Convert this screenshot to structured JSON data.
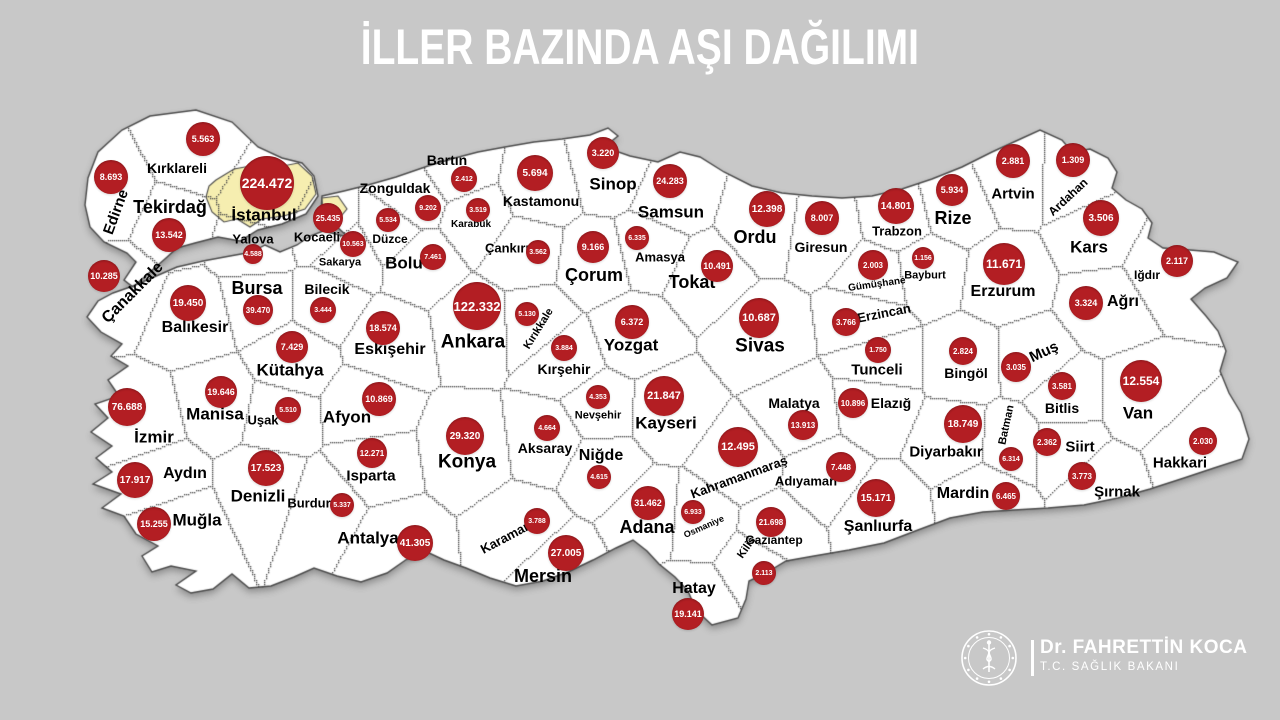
{
  "title": "İLLER BAZINDA AŞI DAĞILIMI",
  "footer": {
    "minister_name": "Dr. FAHRETTİN KOCA",
    "minister_role": "T.C. SAĞLIK BAKANI",
    "logo": "health-ministry-seal-caduceus-icon"
  },
  "colors": {
    "background": "#c8c8c8",
    "land": "#ffffff",
    "border": "#4a4a4a",
    "bubble": "#b31e23",
    "bubble_text": "#ffffff",
    "highlight_istanbul": "#f6eeb0",
    "label_text": "#000000",
    "title_text": "#ffffff",
    "footer_text": "#ffffff"
  },
  "provinces": [
    {
      "name": "Edirne",
      "value": "8.693",
      "circle": [
        111,
        177,
        17
      ],
      "label": [
        116,
        212,
        15,
        -70
      ]
    },
    {
      "name": "Kırklareli",
      "value": "5.563",
      "circle": [
        203,
        139,
        17
      ],
      "label": [
        177,
        168,
        14,
        0
      ]
    },
    {
      "name": "Tekirdağ",
      "value": "13.542",
      "circle": [
        169,
        235,
        17
      ],
      "label": [
        170,
        207,
        18,
        0
      ]
    },
    {
      "name": "İstanbul",
      "value": "224.472",
      "circle": [
        267,
        183,
        27
      ],
      "label": [
        264,
        215,
        17,
        0
      ],
      "highlight": true
    },
    {
      "name": "Kocaeli",
      "value": "25.435",
      "circle": [
        328,
        218,
        15
      ],
      "label": [
        317,
        237,
        13,
        0
      ]
    },
    {
      "name": "Yalova",
      "value": "4.588",
      "circle": [
        253,
        254,
        10
      ],
      "label": [
        253,
        239,
        13,
        0
      ]
    },
    {
      "name": "Sakarya",
      "value": "10.563",
      "circle": [
        353,
        244,
        13
      ],
      "label": [
        340,
        263,
        11,
        0
      ]
    },
    {
      "name": "Düzce",
      "value": "5.534",
      "circle": [
        388,
        220,
        12
      ],
      "label": [
        390,
        239,
        12,
        0
      ]
    },
    {
      "name": "Bolu",
      "value": "7.461",
      "circle": [
        433,
        257,
        13
      ],
      "label": [
        404,
        263,
        17,
        0
      ]
    },
    {
      "name": "Zonguldak",
      "value": "9.202",
      "circle": [
        428,
        208,
        13
      ],
      "label": [
        395,
        188,
        14,
        0
      ]
    },
    {
      "name": "Bartın",
      "value": "2.412",
      "circle": [
        464,
        179,
        13
      ],
      "label": [
        447,
        160,
        14,
        0
      ]
    },
    {
      "name": "Karabük",
      "value": "3.519",
      "circle": [
        478,
        210,
        12
      ],
      "label": [
        471,
        225,
        10,
        0
      ]
    },
    {
      "name": "Kastamonu",
      "value": "5.694",
      "circle": [
        535,
        173,
        18
      ],
      "label": [
        541,
        201,
        14,
        0
      ]
    },
    {
      "name": "Çankırı",
      "value": "3.562",
      "circle": [
        538,
        252,
        12
      ],
      "label": [
        507,
        248,
        13,
        0
      ]
    },
    {
      "name": "Sinop",
      "value": "3.220",
      "circle": [
        603,
        153,
        16
      ],
      "label": [
        613,
        184,
        17,
        0
      ]
    },
    {
      "name": "Çorum",
      "value": "9.166",
      "circle": [
        593,
        247,
        16
      ],
      "label": [
        594,
        275,
        18,
        0
      ]
    },
    {
      "name": "Amasya",
      "value": "6.335",
      "circle": [
        637,
        238,
        12
      ],
      "label": [
        660,
        257,
        13,
        0
      ]
    },
    {
      "name": "Samsun",
      "value": "24.283",
      "circle": [
        670,
        181,
        17
      ],
      "label": [
        671,
        212,
        17,
        0
      ]
    },
    {
      "name": "Ordu",
      "value": "12.398",
      "circle": [
        767,
        209,
        18
      ],
      "label": [
        755,
        237,
        18,
        0
      ]
    },
    {
      "name": "Tokat",
      "value": "10.491",
      "circle": [
        717,
        266,
        16
      ],
      "label": [
        692,
        282,
        18,
        0
      ]
    },
    {
      "name": "Giresun",
      "value": "8.007",
      "circle": [
        822,
        218,
        17
      ],
      "label": [
        821,
        247,
        14,
        0
      ]
    },
    {
      "name": "Gümüşhane",
      "value": "2.003",
      "circle": [
        873,
        265,
        15
      ],
      "label": [
        877,
        285,
        10,
        -8
      ]
    },
    {
      "name": "Bayburt",
      "value": "1.156",
      "circle": [
        923,
        258,
        11
      ],
      "label": [
        925,
        276,
        11,
        0
      ]
    },
    {
      "name": "Trabzon",
      "value": "14.801",
      "circle": [
        896,
        206,
        18
      ],
      "label": [
        897,
        231,
        13,
        0
      ]
    },
    {
      "name": "Rize",
      "value": "5.934",
      "circle": [
        952,
        190,
        16
      ],
      "label": [
        953,
        218,
        18,
        0
      ]
    },
    {
      "name": "Artvin",
      "value": "2.881",
      "circle": [
        1013,
        161,
        17
      ],
      "label": [
        1013,
        194,
        15,
        0
      ]
    },
    {
      "name": "Ardahan",
      "value": "1.309",
      "circle": [
        1073,
        160,
        17
      ],
      "label": [
        1068,
        197,
        12,
        -43
      ]
    },
    {
      "name": "Kars",
      "value": "3.506",
      "circle": [
        1101,
        218,
        18
      ],
      "label": [
        1089,
        247,
        17,
        0
      ]
    },
    {
      "name": "Iğdır",
      "value": "2.117",
      "circle": [
        1177,
        261,
        16
      ],
      "label": [
        1147,
        275,
        12,
        0
      ]
    },
    {
      "name": "Ağrı",
      "value": "3.324",
      "circle": [
        1086,
        303,
        17
      ],
      "label": [
        1123,
        302,
        16,
        0
      ]
    },
    {
      "name": "Erzurum",
      "value": "11.671",
      "circle": [
        1004,
        264,
        21
      ],
      "label": [
        1003,
        292,
        16,
        0
      ]
    },
    {
      "name": "Erzincan",
      "value": "3.766",
      "circle": [
        846,
        322,
        14
      ],
      "label": [
        884,
        313,
        13,
        -11
      ]
    },
    {
      "name": "Tunceli",
      "value": "1.750",
      "circle": [
        878,
        350,
        13
      ],
      "label": [
        877,
        370,
        15,
        0
      ]
    },
    {
      "name": "Bingöl",
      "value": "2.824",
      "circle": [
        963,
        351,
        14
      ],
      "label": [
        966,
        373,
        14,
        0
      ]
    },
    {
      "name": "Muş",
      "value": "3.035",
      "circle": [
        1016,
        367,
        15
      ],
      "label": [
        1044,
        352,
        15,
        -25
      ]
    },
    {
      "name": "Bitlis",
      "value": "3.581",
      "circle": [
        1062,
        386,
        14
      ],
      "label": [
        1062,
        408,
        14,
        0
      ]
    },
    {
      "name": "Van",
      "value": "12.554",
      "circle": [
        1141,
        381,
        21
      ],
      "label": [
        1138,
        413,
        17,
        0
      ]
    },
    {
      "name": "Sivas",
      "value": "10.687",
      "circle": [
        759,
        318,
        20
      ],
      "label": [
        760,
        346,
        19,
        0
      ]
    },
    {
      "name": "Malatya",
      "value": "13.913",
      "circle": [
        803,
        425,
        15
      ],
      "label": [
        794,
        403,
        14,
        0
      ]
    },
    {
      "name": "Elazığ",
      "value": "10.896",
      "circle": [
        853,
        403,
        15
      ],
      "label": [
        891,
        403,
        14,
        0
      ]
    },
    {
      "name": "Diyarbakır",
      "value": "18.749",
      "circle": [
        963,
        424,
        19
      ],
      "label": [
        946,
        452,
        15,
        0
      ]
    },
    {
      "name": "Batman",
      "value": "6.314",
      "circle": [
        1011,
        459,
        12
      ],
      "label": [
        1007,
        425,
        11,
        -78
      ]
    },
    {
      "name": "Siirt",
      "value": "2.362",
      "circle": [
        1047,
        442,
        14
      ],
      "label": [
        1080,
        447,
        15,
        0
      ]
    },
    {
      "name": "Şırnak",
      "value": "3.773",
      "circle": [
        1082,
        476,
        14
      ],
      "label": [
        1117,
        492,
        15,
        0
      ]
    },
    {
      "name": "Hakkari",
      "value": "2.030",
      "circle": [
        1203,
        441,
        14
      ],
      "label": [
        1180,
        463,
        15,
        0
      ]
    },
    {
      "name": "Mardin",
      "value": "6.465",
      "circle": [
        1006,
        496,
        14
      ],
      "label": [
        963,
        494,
        16,
        0
      ]
    },
    {
      "name": "Şanlıurfa",
      "value": "15.171",
      "circle": [
        876,
        498,
        19
      ],
      "label": [
        878,
        527,
        16,
        0
      ]
    },
    {
      "name": "Gaziantep",
      "value": "21.698",
      "circle": [
        771,
        522,
        15
      ],
      "label": [
        774,
        540,
        12,
        0
      ]
    },
    {
      "name": "Kilis",
      "value": "2.113",
      "circle": [
        764,
        573,
        12
      ],
      "label": [
        747,
        548,
        11,
        -55
      ]
    },
    {
      "name": "Adıyaman",
      "value": "7.448",
      "circle": [
        841,
        467,
        15
      ],
      "label": [
        806,
        481,
        13,
        0
      ]
    },
    {
      "name": "Kahramanmaraş",
      "value": "12.495",
      "circle": [
        738,
        447,
        20
      ],
      "label": [
        739,
        477,
        13,
        -20
      ]
    },
    {
      "name": "Osmaniye",
      "value": "6.933",
      "circle": [
        693,
        512,
        12
      ],
      "label": [
        704,
        527,
        9,
        -24
      ]
    },
    {
      "name": "Hatay",
      "value": "19.141",
      "circle": [
        688,
        614,
        16
      ],
      "label": [
        694,
        589,
        16,
        0
      ]
    },
    {
      "name": "Adana",
      "value": "31.462",
      "circle": [
        648,
        503,
        17
      ],
      "label": [
        647,
        527,
        18,
        0
      ]
    },
    {
      "name": "Mersin",
      "value": "27.005",
      "circle": [
        566,
        553,
        18
      ],
      "label": [
        543,
        576,
        18,
        0
      ]
    },
    {
      "name": "Karaman",
      "value": "3.788",
      "circle": [
        537,
        521,
        13
      ],
      "label": [
        506,
        537,
        13,
        -28
      ]
    },
    {
      "name": "Niğde",
      "value": "4.615",
      "circle": [
        599,
        477,
        12
      ],
      "label": [
        601,
        456,
        16,
        0
      ]
    },
    {
      "name": "Nevşehir",
      "value": "4.353",
      "circle": [
        598,
        397,
        12
      ],
      "label": [
        598,
        416,
        11,
        0
      ]
    },
    {
      "name": "Aksaray",
      "value": "4.664",
      "circle": [
        547,
        428,
        13
      ],
      "label": [
        545,
        448,
        14,
        0
      ]
    },
    {
      "name": "Kayseri",
      "value": "21.847",
      "circle": [
        664,
        396,
        20
      ],
      "label": [
        666,
        423,
        17,
        0
      ]
    },
    {
      "name": "Kırşehir",
      "value": "3.884",
      "circle": [
        564,
        348,
        13
      ],
      "label": [
        564,
        369,
        14,
        0
      ]
    },
    {
      "name": "Kırıkkale",
      "value": "5.130",
      "circle": [
        527,
        314,
        12
      ],
      "label": [
        539,
        329,
        11,
        -58
      ]
    },
    {
      "name": "Yozgat",
      "value": "6.372",
      "circle": [
        632,
        322,
        17
      ],
      "label": [
        631,
        345,
        17,
        0
      ]
    },
    {
      "name": "Konya",
      "value": "29.320",
      "circle": [
        465,
        436,
        19
      ],
      "label": [
        467,
        462,
        19,
        0
      ]
    },
    {
      "name": "Ankara",
      "value": "122.332",
      "circle": [
        477,
        306,
        24
      ],
      "label": [
        473,
        342,
        19,
        0
      ]
    },
    {
      "name": "Eskişehir",
      "value": "18.574",
      "circle": [
        383,
        328,
        17
      ],
      "label": [
        390,
        350,
        16,
        0
      ]
    },
    {
      "name": "Bilecik",
      "value": "3.444",
      "circle": [
        323,
        310,
        13
      ],
      "label": [
        327,
        289,
        14,
        0
      ]
    },
    {
      "name": "Bursa",
      "value": "39.470",
      "circle": [
        258,
        310,
        15
      ],
      "label": [
        257,
        288,
        18,
        0
      ]
    },
    {
      "name": "Balıkesir",
      "value": "19.450",
      "circle": [
        188,
        303,
        18
      ],
      "label": [
        195,
        328,
        16,
        0
      ]
    },
    {
      "name": "Çanakkale",
      "value": "10.285",
      "circle": [
        104,
        276,
        16
      ],
      "label": [
        133,
        293,
        16,
        -45
      ]
    },
    {
      "name": "Kütahya",
      "value": "7.429",
      "circle": [
        292,
        347,
        16
      ],
      "label": [
        290,
        370,
        17,
        0
      ]
    },
    {
      "name": "Manisa",
      "value": "19.646",
      "circle": [
        221,
        392,
        16
      ],
      "label": [
        215,
        414,
        17,
        0
      ]
    },
    {
      "name": "Uşak",
      "value": "5.510",
      "circle": [
        288,
        410,
        13
      ],
      "label": [
        263,
        420,
        13,
        0
      ]
    },
    {
      "name": "Afyon",
      "value": "10.869",
      "circle": [
        379,
        399,
        17
      ],
      "label": [
        347,
        417,
        17,
        0
      ]
    },
    {
      "name": "İzmir",
      "value": "76.688",
      "circle": [
        127,
        407,
        19
      ],
      "label": [
        154,
        437,
        17,
        0
      ]
    },
    {
      "name": "Aydın",
      "value": "17.917",
      "circle": [
        135,
        480,
        18
      ],
      "label": [
        185,
        474,
        16,
        0
      ]
    },
    {
      "name": "Denizli",
      "value": "17.523",
      "circle": [
        266,
        468,
        18
      ],
      "label": [
        258,
        496,
        17,
        0
      ]
    },
    {
      "name": "Isparta",
      "value": "12.271",
      "circle": [
        372,
        453,
        15
      ],
      "label": [
        371,
        476,
        15,
        0
      ]
    },
    {
      "name": "Burdur",
      "value": "5.337",
      "circle": [
        342,
        505,
        12
      ],
      "label": [
        309,
        503,
        13,
        0
      ]
    },
    {
      "name": "Muğla",
      "value": "15.255",
      "circle": [
        154,
        524,
        17
      ],
      "label": [
        197,
        520,
        17,
        0
      ]
    },
    {
      "name": "Antalya",
      "value": "41.305",
      "circle": [
        415,
        543,
        18
      ],
      "label": [
        368,
        538,
        17,
        0
      ]
    }
  ]
}
